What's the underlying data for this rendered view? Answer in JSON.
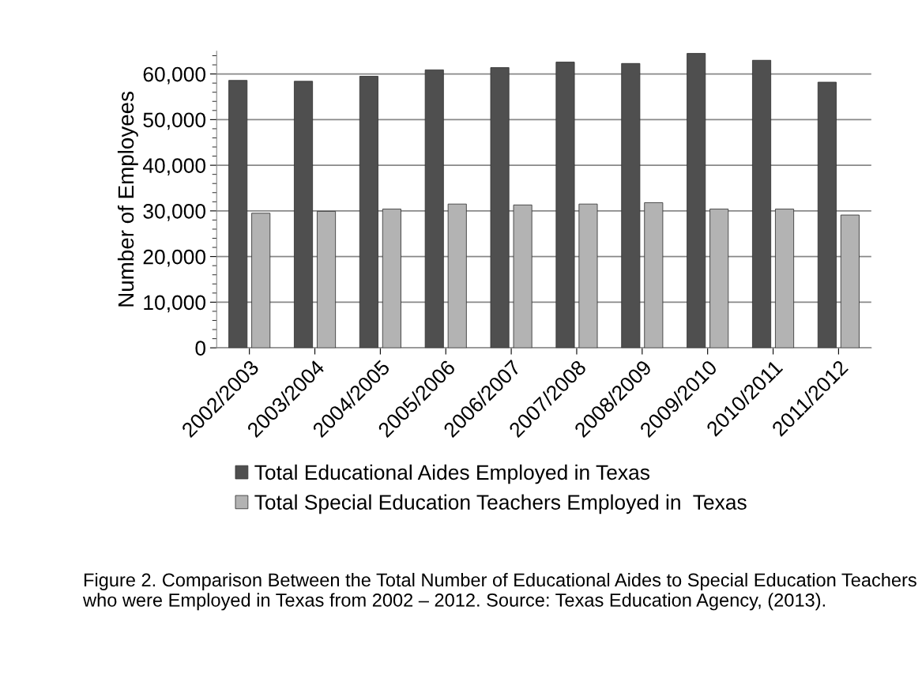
{
  "chart_data": {
    "type": "bar",
    "ylabel": "Number of Employees",
    "categories": [
      "2002/2003",
      "2003/2004",
      "2004/2005",
      "2005/2006",
      "2006/2007",
      "2007/2008",
      "2008/2009",
      "2009/2010",
      "2010/2011",
      "2011/2012"
    ],
    "series": [
      {
        "name": "Total Educational Aides Employed in Texas",
        "color": "#4f4f4f",
        "values": [
          58600,
          58400,
          59500,
          60900,
          61400,
          62600,
          62300,
          64500,
          63000,
          58200
        ]
      },
      {
        "name": "Total Special Education Teachers Employed in  Texas",
        "color": "#b3b3b3",
        "values": [
          29500,
          29900,
          30400,
          31500,
          31300,
          31500,
          31800,
          30400,
          30400,
          29100
        ]
      }
    ],
    "ylim": [
      0,
      65000
    ],
    "yticks": [
      0,
      {
        "value": 10000,
        "label": "10,000"
      },
      {
        "value": 20000,
        "label": "20,000"
      },
      {
        "value": 30000,
        "label": "30,000"
      },
      {
        "value": 40000,
        "label": "40,000"
      },
      {
        "value": 50000,
        "label": "50,000"
      },
      {
        "value": 60000,
        "label": "60,000"
      }
    ],
    "grid": "y",
    "legend": "bottom",
    "annotations": [
      "Figure 2. Comparison Between the Total Number of Educational Aides to Special Education Teachers who were Employed in Texas from 2002 – 2012. Source: Texas Education Agency, (2013)."
    ]
  }
}
